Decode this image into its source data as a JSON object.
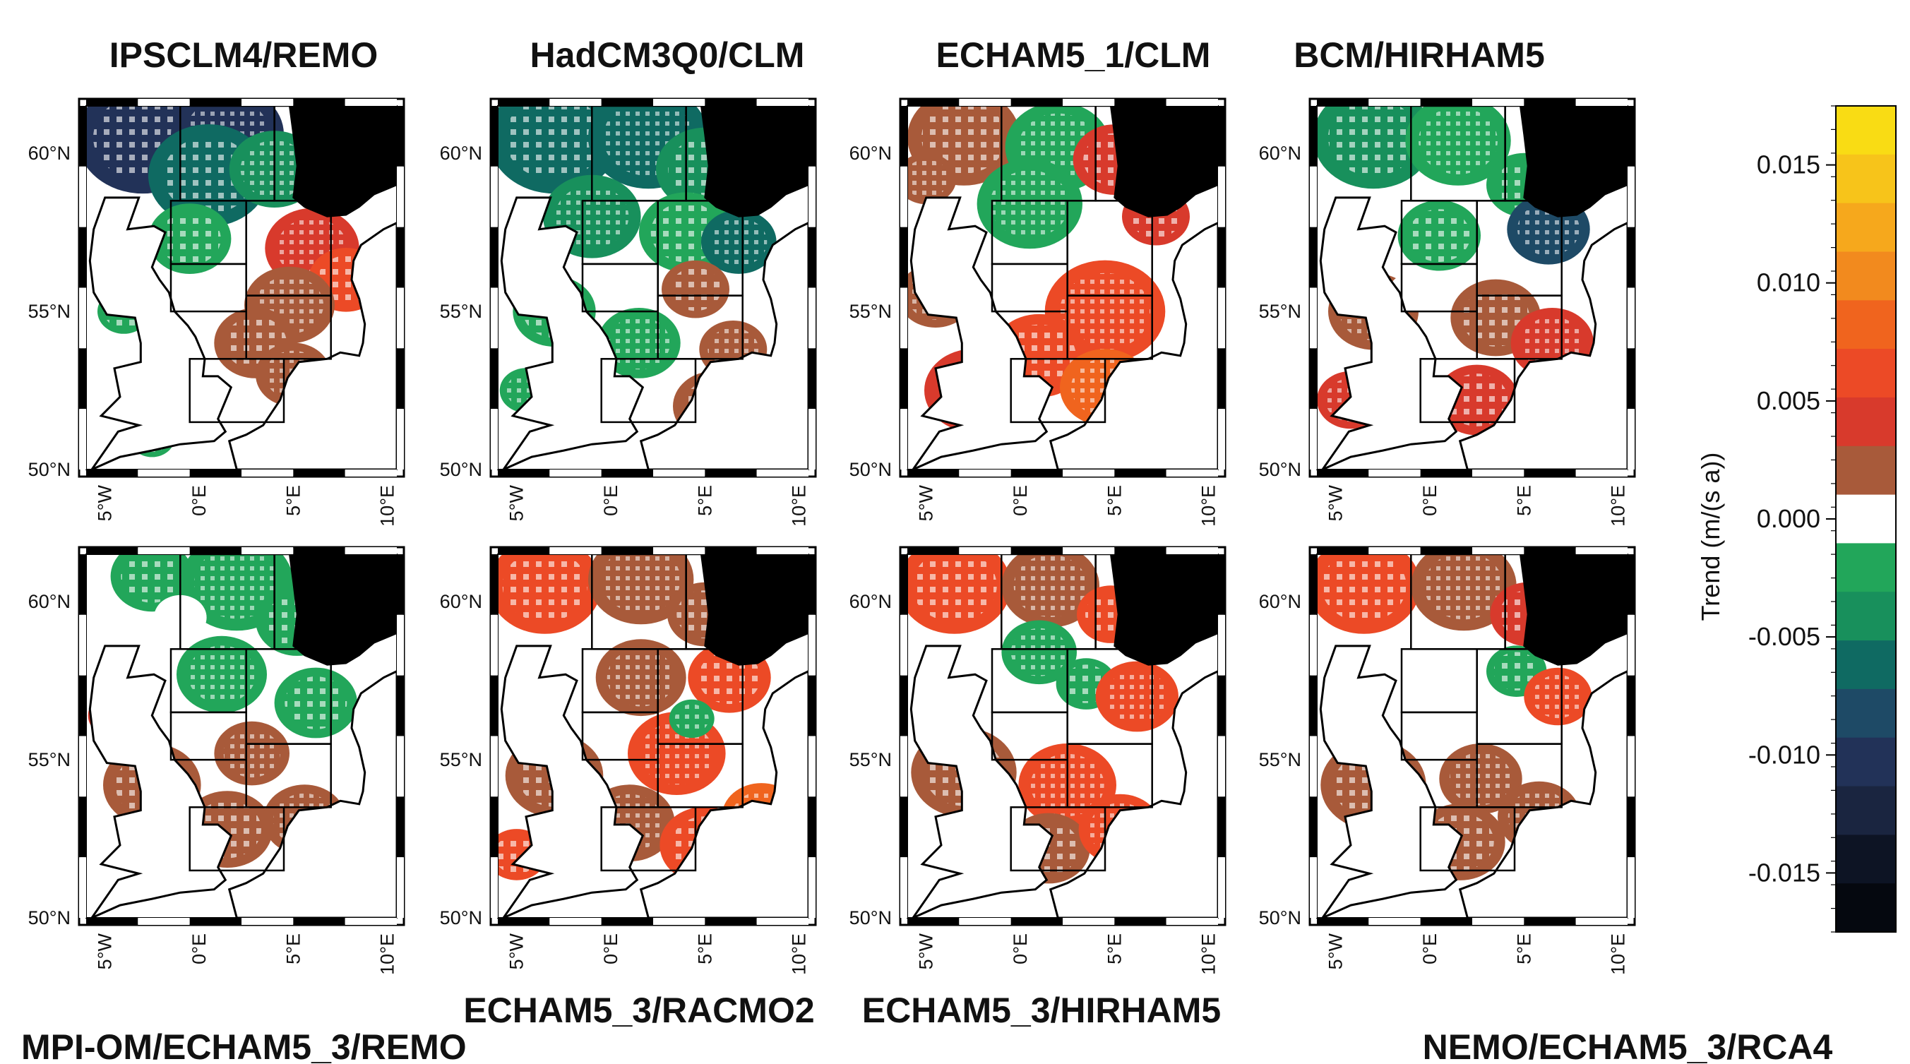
{
  "panels": [
    {
      "title": "IPSCLM4/REMO",
      "dominant_sign": "negative"
    },
    {
      "title": "HadCM3Q0/CLM",
      "dominant_sign": "negative"
    },
    {
      "title": "ECHAM5_1/CLM",
      "dominant_sign": "positive"
    },
    {
      "title": "BCM/HIRHAM5",
      "dominant_sign": "mixed"
    },
    {
      "title": "MPI-OM/ECHAM5_3/REMO",
      "dominant_sign": "mixed"
    },
    {
      "title": "ECHAM5_3/RACMO2",
      "dominant_sign": "positive"
    },
    {
      "title": "ECHAM5_3/HIRHAM5",
      "dominant_sign": "positive"
    },
    {
      "title": "NEMO/ECHAM5_3/RCA4",
      "dominant_sign": "positive"
    }
  ],
  "axes": {
    "lat_ticks": [
      "60°N",
      "55°N",
      "50°N"
    ],
    "lon_ticks": [
      "5°W",
      "0°E",
      "5°E",
      "10°E"
    ],
    "lat_range": [
      50,
      61.5
    ],
    "lon_range": [
      -6,
      10.5
    ]
  },
  "colorbar": {
    "label": "Trend (m/(s a))",
    "ticks": [
      "0.015",
      "0.010",
      "0.005",
      "0.000",
      "-0.005",
      "-0.010",
      "-0.015"
    ],
    "tick_values": [
      0.015,
      0.01,
      0.005,
      0.0,
      -0.005,
      -0.01,
      -0.015
    ],
    "range": [
      -0.0175,
      0.0175
    ],
    "colors": [
      "#05080f",
      "#0d1424",
      "#1a2540",
      "#223258",
      "#1e4a66",
      "#0f6a62",
      "#18905c",
      "#22a65a",
      "#ffffff",
      "#a85a3a",
      "#d83a2c",
      "#ec4a26",
      "#f0641e",
      "#f28a1e",
      "#f6a81c",
      "#f7c41a",
      "#f9dc14"
    ]
  },
  "colors": {
    "land": "#ffffff",
    "coast": "#000000",
    "frame": "#000000",
    "grid_box": "#000000",
    "stipple": "#ffffff"
  }
}
